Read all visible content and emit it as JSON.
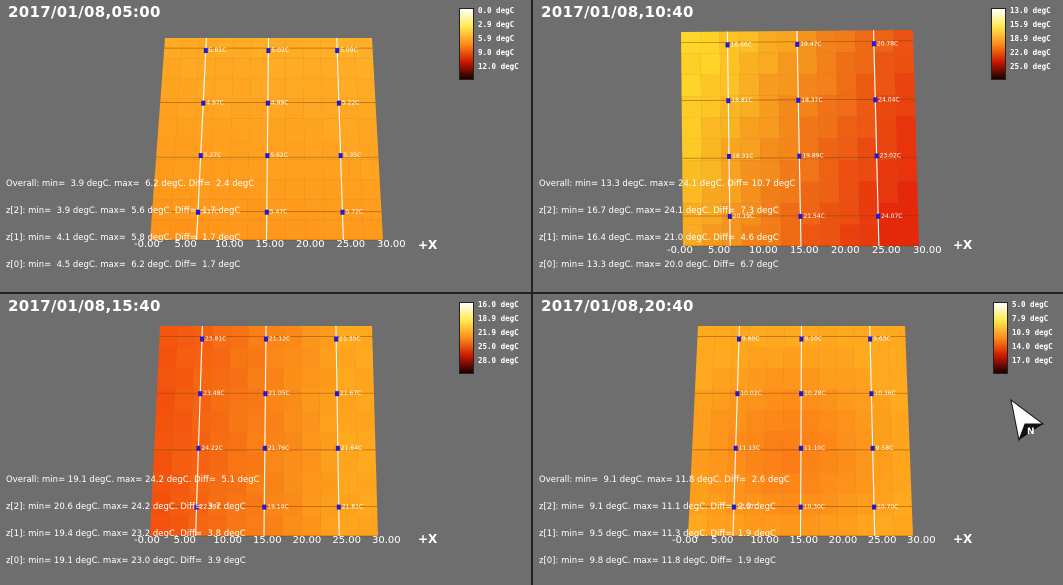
{
  "panels": [
    {
      "timestamp": "2017/01/08,05:00",
      "legend": [
        "0.0 degC",
        "2.9 degC",
        "5.9 degC",
        "9.0 degC",
        "12.0 degC"
      ],
      "legend_gradient": [
        "#ffffff",
        "#ffe94d",
        "#ff8c1a",
        "#cc1a00",
        "#1a0000"
      ],
      "stats": [
        "Overall: min=  3.9 degC. max=  6.2 degC. Diff=  2.4 degC",
        "z[2]: min=  3.9 degC. max=  5.6 degC. Diff=  1.7 degC",
        "z[1]: min=  4.1 degC. max=  5.8 degC. Diff=  1.7 degC",
        "z[0]: min=  4.5 degC. max=  6.2 degC. Diff=  1.7 degC"
      ],
      "x_ticks": [
        "-0.00",
        "5.00",
        "10.00",
        "15.00",
        "20.00",
        "25.00",
        "30.00"
      ],
      "x_axis": "+X",
      "sensor_labels": [
        "5.81C",
        "5.02C",
        "5.09C",
        "4.97C",
        "4.99C",
        "5.22C",
        "5.27C",
        "5.62C",
        "5.35C",
        "5.37C",
        "5.47C",
        "5.72C"
      ]
    },
    {
      "timestamp": "2017/01/08,10:40",
      "legend": [
        "13.0 degC",
        "15.9 degC",
        "18.9 degC",
        "22.0 degC",
        "25.0 degC"
      ],
      "legend_gradient": [
        "#ffffff",
        "#ffe94d",
        "#ff8c1a",
        "#cc1a00",
        "#1a0000"
      ],
      "stats": [
        "Overall: min= 13.3 degC. max= 24.1 degC. Diff= 10.7 degC",
        "z[2]: min= 16.7 degC. max= 24.1 degC. Diff=  7.3 degC",
        "z[1]: min= 16.4 degC. max= 21.0 degC. Diff=  4.6 degC",
        "z[0]: min= 13.3 degC. max= 20.0 degC. Diff=  6.7 degC"
      ],
      "x_ticks": [
        "-0.00",
        "5.00",
        "10.00",
        "15.00",
        "20.00",
        "25.00",
        "30.00"
      ],
      "x_axis": "+X",
      "sensor_labels": [
        "16.66C",
        "19.47C",
        "20.78C",
        "18.81C",
        "18.37C",
        "24.04C",
        "18.31C",
        "19.89C",
        "23.02C",
        "20.19C",
        "21.54C",
        "24.07C"
      ]
    },
    {
      "timestamp": "2017/01/08,15:40",
      "legend": [
        "16.0 degC",
        "18.9 degC",
        "21.9 degC",
        "25.0 degC",
        "28.0 degC"
      ],
      "legend_gradient": [
        "#ffffff",
        "#ffe94d",
        "#ff8c1a",
        "#cc1a00",
        "#1a0000"
      ],
      "stats": [
        "Overall: min= 19.1 degC. max= 24.2 degC. Diff=  5.1 degC",
        "z[2]: min= 20.6 degC. max= 24.2 degC. Diff=  3.7 degC",
        "z[1]: min= 19.4 degC. max= 23.2 degC. Diff=  3.8 degC",
        "z[0]: min= 19.1 degC. max= 23.0 degC. Diff=  3.9 degC"
      ],
      "x_ticks": [
        "-0.00",
        "5.00",
        "10.00",
        "15.00",
        "20.00",
        "25.00",
        "30.00"
      ],
      "x_axis": "+X",
      "sensor_labels": [
        "23.81C",
        "21.12C",
        "21.35C",
        "23.48C",
        "21.05C",
        "21.67C",
        "24.22C",
        "21.76C",
        "21.64C",
        "22.99C",
        "19.14C",
        "21.81C"
      ]
    },
    {
      "timestamp": "2017/01/08,20:40",
      "legend": [
        "5.0 degC",
        "7.9 degC",
        "10.9 degC",
        "14.0 degC",
        "17.0 degC"
      ],
      "legend_gradient": [
        "#ffffff",
        "#ffe94d",
        "#ff8c1a",
        "#cc1a00",
        "#1a0000"
      ],
      "stats": [
        "Overall: min=  9.1 degC. max= 11.8 degC. Diff=  2.6 degC",
        "z[2]: min=  9.1 degC. max= 11.1 degC. Diff=  2.0 degC",
        "z[1]: min=  9.5 degC. max= 11.3 degC. Diff=  1.9 degC",
        "z[0]: min=  9.8 degC. max= 11.8 degC. Diff=  1.9 degC"
      ],
      "x_ticks": [
        "-0.00",
        "5.00",
        "10.00",
        "15.00",
        "20.00",
        "25.00",
        "30.00"
      ],
      "x_axis": "+X",
      "sensor_labels": [
        "9.60C",
        "9.10C",
        "9.63C",
        "10.02C",
        "10.28C",
        "10.36C",
        "11.13C",
        "11.10C",
        "9.58C",
        "10.47C",
        "10.30C",
        "10.70C"
      ],
      "compass_letter": "N"
    }
  ]
}
